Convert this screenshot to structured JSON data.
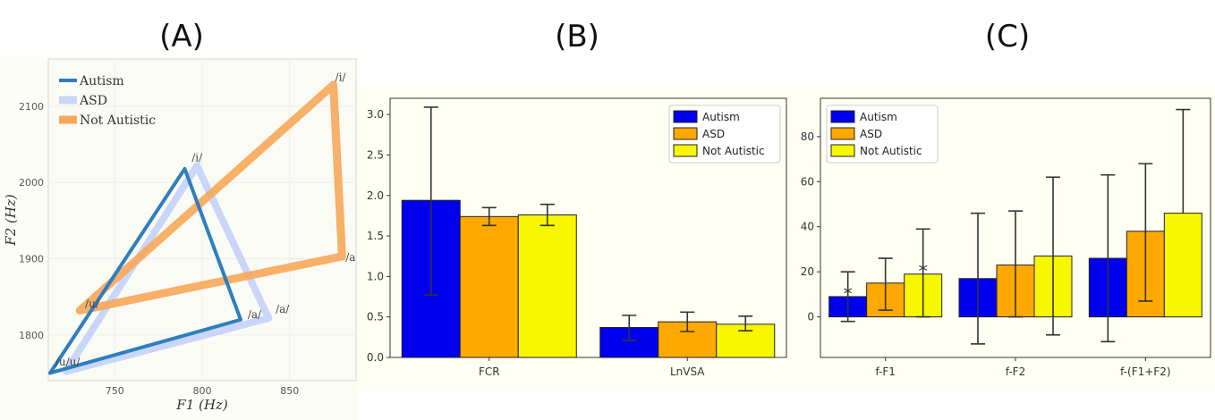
{
  "figure": {
    "panel_labels": [
      "(A)",
      "(B)",
      "(C)"
    ]
  },
  "chart_data": [
    {
      "type": "line",
      "panel": "(A)",
      "xlabel": "F1 (Hz)",
      "ylabel": "F2 (Hz)",
      "xlim": [
        712,
        888
      ],
      "ylim": [
        1740,
        2162
      ],
      "x_ticks": [
        750,
        800,
        850
      ],
      "y_ticks": [
        1800,
        1900,
        2000,
        2100
      ],
      "grid": true,
      "legend": "top-left",
      "series": [
        {
          "name": "Autism",
          "color": "#2e7ebf",
          "points": [
            {
              "label": "/i/",
              "x": 790,
              "y": 2018
            },
            {
              "label": "/a/",
              "x": 822,
              "y": 1820
            },
            {
              "label": "/u/",
              "x": 713,
              "y": 1750
            }
          ]
        },
        {
          "name": "ASD",
          "color": "#c9d6f7",
          "points": [
            {
              "label": "/i/",
              "x": 797,
              "y": 2022
            },
            {
              "label": "/a/",
              "x": 838,
              "y": 1822
            },
            {
              "label": "/u/",
              "x": 722,
              "y": 1752
            }
          ]
        },
        {
          "name": "Not Autistic",
          "color": "#f7a659",
          "points": [
            {
              "label": "/i/",
              "x": 875,
              "y": 2128
            },
            {
              "label": "/a/",
              "x": 880,
              "y": 1903
            },
            {
              "label": "/u/",
              "x": 730,
              "y": 1832
            }
          ]
        }
      ],
      "point_labels": [
        {
          "text": "/i/",
          "x": 876,
          "y": 2133
        },
        {
          "text": "/i/",
          "x": 794,
          "y": 2028
        },
        {
          "text": "/a",
          "x": 882,
          "y": 1897
        },
        {
          "text": "/a/",
          "x": 826,
          "y": 1822
        },
        {
          "text": "/a/",
          "x": 842,
          "y": 1829
        },
        {
          "text": "/u/",
          "x": 733,
          "y": 1836
        },
        {
          "text": "/u/u/",
          "x": 716,
          "y": 1760
        }
      ]
    },
    {
      "type": "bar",
      "panel": "(B)",
      "categories": [
        "FCR",
        "LnVSA"
      ],
      "ylim": [
        0,
        3.2
      ],
      "y_ticks": [
        0.0,
        0.5,
        1.0,
        1.5,
        2.0,
        2.5,
        3.0
      ],
      "legend": "top-right",
      "series": [
        {
          "name": "Autism",
          "color": "#0000ee",
          "values": [
            1.94,
            0.37
          ],
          "err_low": [
            0.77,
            0.21
          ],
          "err_high": [
            3.09,
            0.52
          ]
        },
        {
          "name": "ASD",
          "color": "#ffa800",
          "values": [
            1.74,
            0.44
          ],
          "err_low": [
            1.63,
            0.32
          ],
          "err_high": [
            1.85,
            0.56
          ]
        },
        {
          "name": "Not Autistic",
          "color": "#f7f700",
          "values": [
            1.76,
            0.41
          ],
          "err_low": [
            1.63,
            0.33
          ],
          "err_high": [
            1.89,
            0.51
          ]
        }
      ]
    },
    {
      "type": "bar",
      "panel": "(C)",
      "categories": [
        "f-F1",
        "f-F2",
        "f-(F1+F2)"
      ],
      "ylim": [
        -18,
        97
      ],
      "y_ticks": [
        0,
        20,
        40,
        60,
        80
      ],
      "legend": "top-left",
      "series": [
        {
          "name": "Autism",
          "color": "#0000ee",
          "values": [
            9,
            17,
            26
          ],
          "err_low": [
            -2,
            -12,
            -11
          ],
          "err_high": [
            20,
            46,
            63
          ]
        },
        {
          "name": "ASD",
          "color": "#ffa800",
          "values": [
            15,
            23,
            38
          ],
          "err_low": [
            3,
            0,
            7
          ],
          "err_high": [
            26,
            47,
            68
          ]
        },
        {
          "name": "Not Autistic",
          "color": "#f7f700",
          "values": [
            19,
            27,
            46
          ],
          "err_low": [
            0,
            -8,
            null
          ],
          "err_high": [
            39,
            62,
            92
          ]
        }
      ],
      "annotations": [
        {
          "text": "*",
          "category": "f-F1",
          "series": "Autism",
          "y": 11
        },
        {
          "text": "*",
          "category": "f-F1",
          "series": "Not Autistic",
          "y": 21
        }
      ]
    }
  ]
}
